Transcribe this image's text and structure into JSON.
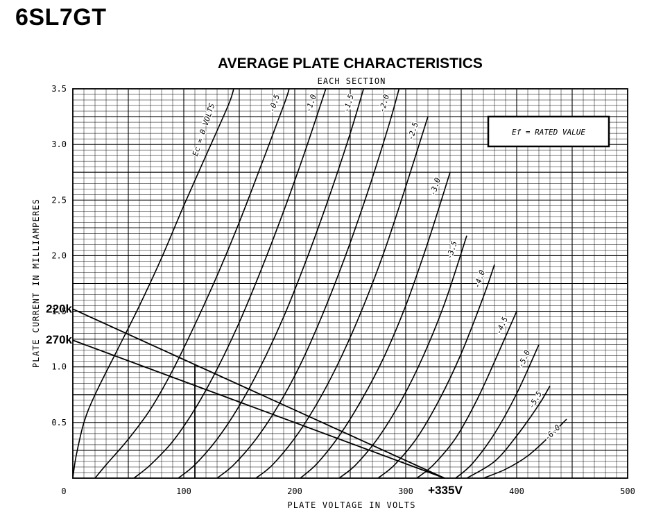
{
  "page": {
    "title": "6SL7GT"
  },
  "chart_data": {
    "type": "line",
    "title": "AVERAGE PLATE CHARACTERISTICS",
    "subtitle": "EACH SECTION",
    "xlabel": "PLATE VOLTAGE IN VOLTS",
    "ylabel": "PLATE CURRENT IN MILLIAMPERES",
    "xlim": [
      0,
      500
    ],
    "ylim": [
      0,
      3.5
    ],
    "xticks": [
      "0",
      "100",
      "200",
      "300",
      "400",
      "500"
    ],
    "yticks": [
      "0.5",
      "1.0",
      "1.5",
      "2.0",
      "2.5",
      "3.0",
      "3.5"
    ],
    "grid": true,
    "legend_box": "Ef = RATED VALUE",
    "series": [
      {
        "label": "Ec = 0 VOLTS",
        "points": [
          [
            0,
            0
          ],
          [
            3,
            0.2
          ],
          [
            10,
            0.5
          ],
          [
            20,
            0.75
          ],
          [
            40,
            1.15
          ],
          [
            60,
            1.55
          ],
          [
            80,
            1.98
          ],
          [
            100,
            2.45
          ],
          [
            120,
            2.9
          ],
          [
            140,
            3.35
          ],
          [
            145,
            3.5
          ]
        ]
      },
      {
        "label": "-0.5",
        "points": [
          [
            20,
            0
          ],
          [
            30,
            0.12
          ],
          [
            50,
            0.35
          ],
          [
            70,
            0.62
          ],
          [
            90,
            0.97
          ],
          [
            110,
            1.38
          ],
          [
            130,
            1.82
          ],
          [
            150,
            2.3
          ],
          [
            170,
            2.82
          ],
          [
            190,
            3.35
          ],
          [
            195,
            3.5
          ]
        ]
      },
      {
        "label": "-1.0",
        "points": [
          [
            55,
            0
          ],
          [
            70,
            0.12
          ],
          [
            90,
            0.33
          ],
          [
            110,
            0.62
          ],
          [
            130,
            0.98
          ],
          [
            150,
            1.4
          ],
          [
            170,
            1.88
          ],
          [
            190,
            2.4
          ],
          [
            210,
            2.96
          ],
          [
            228,
            3.5
          ]
        ]
      },
      {
        "label": "-1.5",
        "points": [
          [
            95,
            0
          ],
          [
            110,
            0.12
          ],
          [
            130,
            0.35
          ],
          [
            150,
            0.65
          ],
          [
            170,
            1.02
          ],
          [
            190,
            1.45
          ],
          [
            210,
            1.95
          ],
          [
            230,
            2.5
          ],
          [
            250,
            3.1
          ],
          [
            262,
            3.5
          ]
        ]
      },
      {
        "label": "-2.0",
        "points": [
          [
            130,
            0
          ],
          [
            145,
            0.12
          ],
          [
            165,
            0.35
          ],
          [
            185,
            0.65
          ],
          [
            205,
            1.02
          ],
          [
            225,
            1.47
          ],
          [
            245,
            1.98
          ],
          [
            265,
            2.55
          ],
          [
            285,
            3.18
          ],
          [
            294,
            3.5
          ]
        ]
      },
      {
        "label": "-2.5",
        "points": [
          [
            165,
            0
          ],
          [
            180,
            0.12
          ],
          [
            200,
            0.36
          ],
          [
            220,
            0.67
          ],
          [
            240,
            1.05
          ],
          [
            260,
            1.5
          ],
          [
            280,
            2.02
          ],
          [
            300,
            2.62
          ],
          [
            320,
            3.25
          ]
        ]
      },
      {
        "label": "-3.0",
        "points": [
          [
            205,
            0
          ],
          [
            220,
            0.13
          ],
          [
            240,
            0.38
          ],
          [
            260,
            0.7
          ],
          [
            280,
            1.08
          ],
          [
            300,
            1.55
          ],
          [
            320,
            2.12
          ],
          [
            340,
            2.75
          ]
        ]
      },
      {
        "label": "-3.5",
        "points": [
          [
            240,
            0
          ],
          [
            255,
            0.12
          ],
          [
            275,
            0.36
          ],
          [
            295,
            0.68
          ],
          [
            315,
            1.08
          ],
          [
            335,
            1.57
          ],
          [
            355,
            2.18
          ]
        ]
      },
      {
        "label": "-4.0",
        "points": [
          [
            275,
            0
          ],
          [
            290,
            0.12
          ],
          [
            310,
            0.36
          ],
          [
            330,
            0.7
          ],
          [
            350,
            1.12
          ],
          [
            370,
            1.63
          ],
          [
            380,
            1.92
          ]
        ]
      },
      {
        "label": "-4.5",
        "points": [
          [
            310,
            0
          ],
          [
            325,
            0.12
          ],
          [
            345,
            0.36
          ],
          [
            365,
            0.72
          ],
          [
            385,
            1.16
          ],
          [
            400,
            1.5
          ]
        ]
      },
      {
        "label": "-5.0",
        "points": [
          [
            345,
            0
          ],
          [
            360,
            0.13
          ],
          [
            380,
            0.4
          ],
          [
            400,
            0.76
          ],
          [
            420,
            1.2
          ]
        ]
      },
      {
        "label": "-5.5",
        "points": [
          [
            355,
            0
          ],
          [
            380,
            0.15
          ],
          [
            400,
            0.38
          ],
          [
            420,
            0.66
          ],
          [
            430,
            0.83
          ]
        ]
      },
      {
        "label": "-6.0",
        "points": [
          [
            370,
            0
          ],
          [
            390,
            0.08
          ],
          [
            410,
            0.2
          ],
          [
            430,
            0.38
          ],
          [
            445,
            0.53
          ]
        ]
      }
    ],
    "load_lines": [
      {
        "label": "220k",
        "points": [
          [
            0,
            1.52
          ],
          [
            335,
            0
          ]
        ]
      },
      {
        "label": "270k",
        "points": [
          [
            0,
            1.24
          ],
          [
            335,
            0
          ]
        ]
      }
    ],
    "marker_lines": [
      {
        "points": [
          [
            110,
            1.02
          ],
          [
            110,
            0
          ]
        ]
      }
    ],
    "annotation": "+335V"
  }
}
